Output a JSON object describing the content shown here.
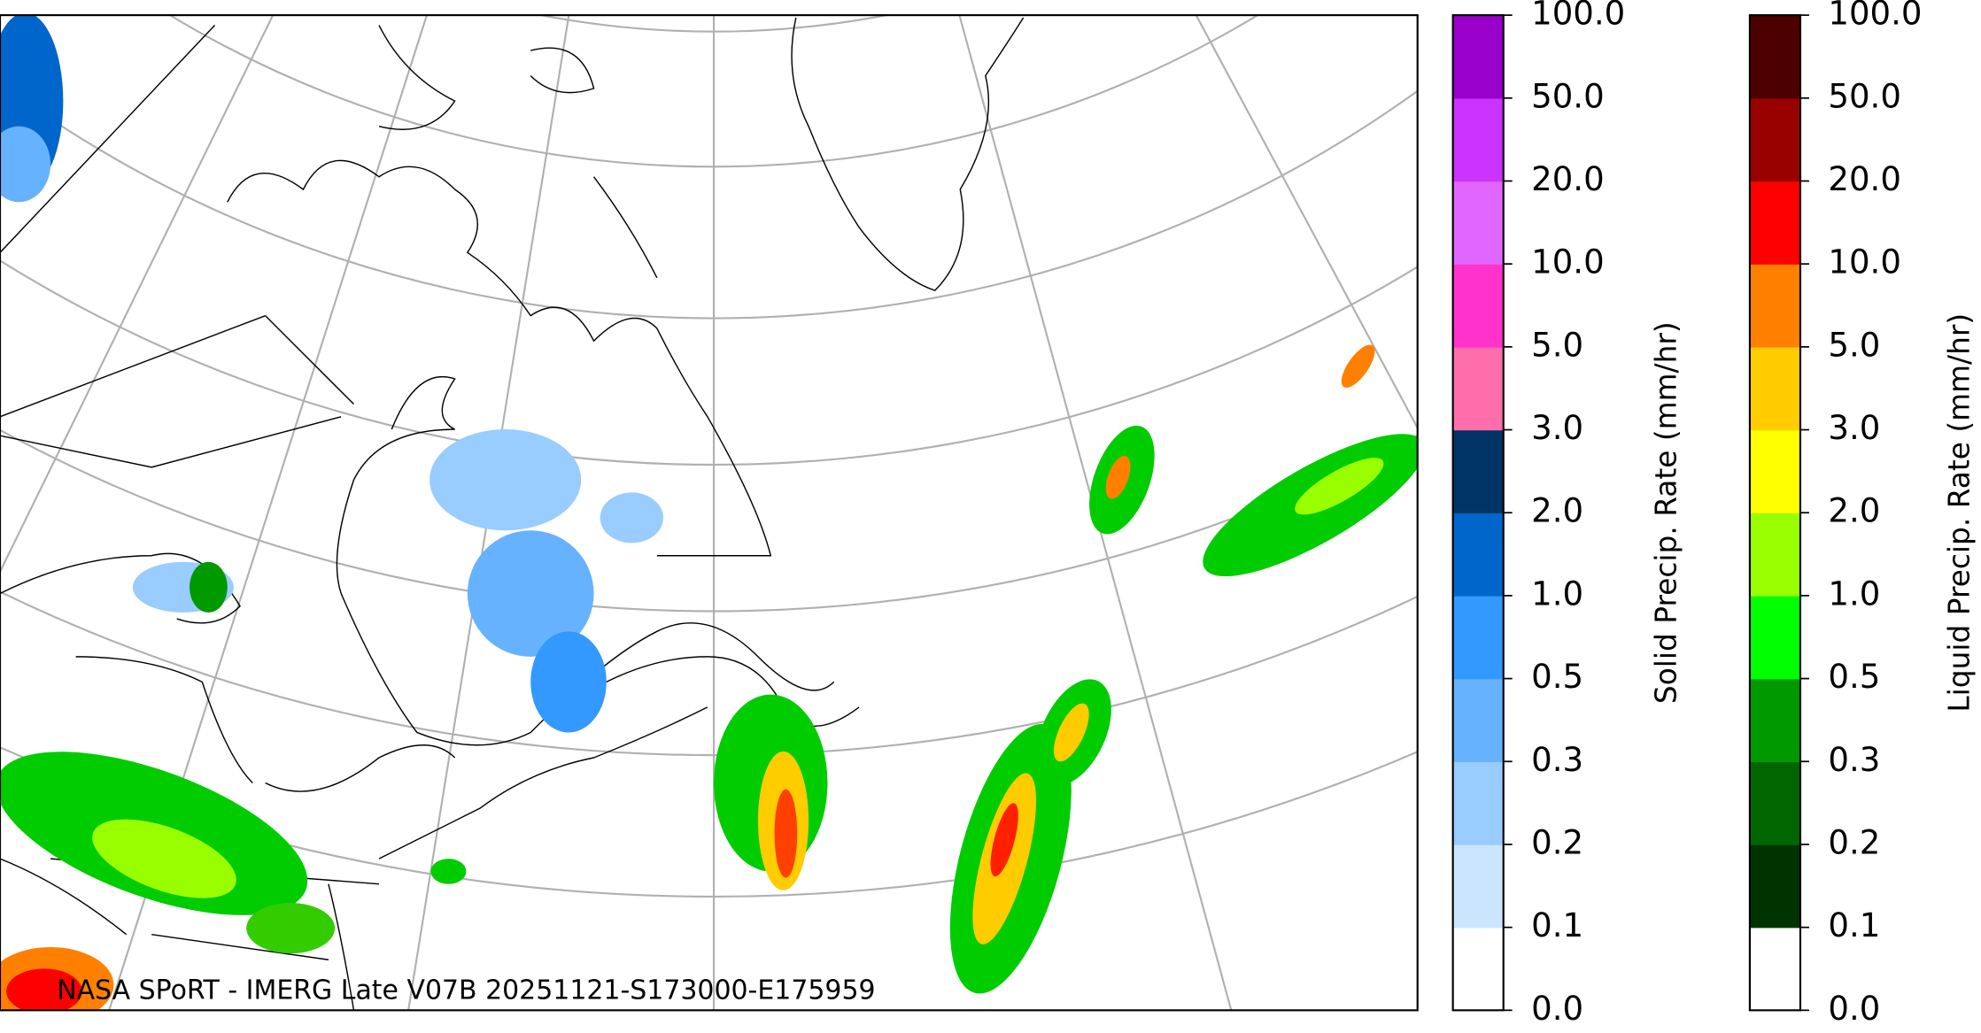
{
  "map": {
    "caption": "NASA SPoRT - IMERG Late V07B 20251121-S173000-E175959"
  },
  "colorbars": [
    {
      "label": "Solid Precip. Rate (mm/hr)",
      "ticks": [
        "0.0",
        "0.1",
        "0.2",
        "0.3",
        "0.5",
        "1.0",
        "2.0",
        "3.0",
        "5.0",
        "10.0",
        "20.0",
        "50.0",
        "100.0"
      ],
      "colors": [
        "#ffffff",
        "#cce5ff",
        "#99ccff",
        "#66b2ff",
        "#3399ff",
        "#0066cc",
        "#003366",
        "#ff6eaa",
        "#ff33cc",
        "#e066ff",
        "#cc33ff",
        "#9900cc"
      ]
    },
    {
      "label": "Liquid Precip. Rate (mm/hr)",
      "ticks": [
        "0.0",
        "0.1",
        "0.2",
        "0.3",
        "0.5",
        "1.0",
        "2.0",
        "3.0",
        "5.0",
        "10.0",
        "20.0",
        "50.0",
        "100.0"
      ],
      "colors": [
        "#ffffff",
        "#003300",
        "#006600",
        "#009900",
        "#00ff00",
        "#99ff00",
        "#ffff00",
        "#ffcc00",
        "#ff8000",
        "#ff0000",
        "#990000",
        "#4d0000"
      ]
    }
  ]
}
